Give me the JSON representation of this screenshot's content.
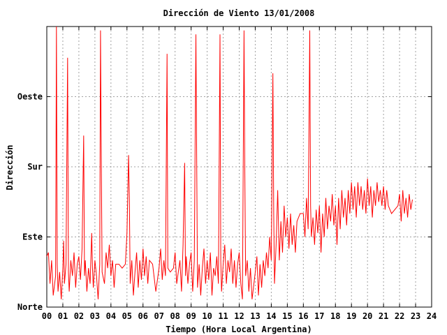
{
  "chart_data": {
    "type": "line",
    "title": "Dirección de Viento 13/01/2008",
    "xlabel": "Tiempo (Hora Local Argentina)",
    "ylabel": "Dirección",
    "x_ticks": [
      "00",
      "01",
      "02",
      "03",
      "04",
      "05",
      "06",
      "07",
      "08",
      "09",
      "10",
      "11",
      "12",
      "13",
      "14",
      "15",
      "16",
      "17",
      "18",
      "19",
      "20",
      "21",
      "22",
      "23",
      "24"
    ],
    "xlim": [
      0,
      24
    ],
    "y_ticks": [
      {
        "label": "Norte",
        "value": 0
      },
      {
        "label": "Este",
        "value": 90
      },
      {
        "label": "Sur",
        "value": 180
      },
      {
        "label": "Oeste",
        "value": 270
      }
    ],
    "ylim": [
      0,
      360
    ],
    "grid": true,
    "line_color": "#ff0000",
    "series": [
      {
        "points": [
          [
            0.0,
            65
          ],
          [
            0.1,
            70
          ],
          [
            0.2,
            30
          ],
          [
            0.3,
            60
          ],
          [
            0.4,
            15
          ],
          [
            0.55,
            40
          ],
          [
            0.6,
            360
          ],
          [
            0.65,
            55
          ],
          [
            0.7,
            20
          ],
          [
            0.8,
            45
          ],
          [
            0.9,
            10
          ],
          [
            1.0,
            50
          ],
          [
            1.05,
            85
          ],
          [
            1.1,
            30
          ],
          [
            1.2,
            55
          ],
          [
            1.3,
            320
          ],
          [
            1.32,
            190
          ],
          [
            1.35,
            45
          ],
          [
            1.4,
            20
          ],
          [
            1.5,
            60
          ],
          [
            1.6,
            40
          ],
          [
            1.7,
            70
          ],
          [
            1.8,
            25
          ],
          [
            1.9,
            55
          ],
          [
            2.0,
            65
          ],
          [
            2.1,
            35
          ],
          [
            2.2,
            75
          ],
          [
            2.3,
            220
          ],
          [
            2.35,
            40
          ],
          [
            2.4,
            60
          ],
          [
            2.5,
            20
          ],
          [
            2.6,
            50
          ],
          [
            2.7,
            30
          ],
          [
            2.8,
            95
          ],
          [
            2.85,
            50
          ],
          [
            2.9,
            25
          ],
          [
            3.0,
            60
          ],
          [
            3.1,
            40
          ],
          [
            3.2,
            10
          ],
          [
            3.3,
            55
          ],
          [
            3.35,
            355
          ],
          [
            3.4,
            180
          ],
          [
            3.45,
            45
          ],
          [
            3.6,
            30
          ],
          [
            3.7,
            70
          ],
          [
            3.8,
            50
          ],
          [
            3.9,
            80
          ],
          [
            4.0,
            40
          ],
          [
            4.1,
            60
          ],
          [
            4.2,
            25
          ],
          [
            4.3,
            55
          ],
          [
            4.5,
            55
          ],
          [
            4.7,
            50
          ],
          [
            4.9,
            55
          ],
          [
            5.0,
            95
          ],
          [
            5.1,
            195
          ],
          [
            5.15,
            140
          ],
          [
            5.2,
            30
          ],
          [
            5.3,
            60
          ],
          [
            5.4,
            15
          ],
          [
            5.5,
            45
          ],
          [
            5.6,
            70
          ],
          [
            5.7,
            25
          ],
          [
            5.8,
            60
          ],
          [
            5.9,
            35
          ],
          [
            6.0,
            75
          ],
          [
            6.1,
            40
          ],
          [
            6.2,
            65
          ],
          [
            6.3,
            30
          ],
          [
            6.4,
            60
          ],
          [
            6.6,
            55
          ],
          [
            6.8,
            20
          ],
          [
            7.0,
            50
          ],
          [
            7.1,
            75
          ],
          [
            7.2,
            35
          ],
          [
            7.3,
            60
          ],
          [
            7.4,
            40
          ],
          [
            7.5,
            325
          ],
          [
            7.55,
            50
          ],
          [
            7.7,
            45
          ],
          [
            7.9,
            50
          ],
          [
            8.0,
            70
          ],
          [
            8.1,
            30
          ],
          [
            8.3,
            60
          ],
          [
            8.4,
            20
          ],
          [
            8.5,
            80
          ],
          [
            8.6,
            185
          ],
          [
            8.65,
            40
          ],
          [
            8.7,
            65
          ],
          [
            8.8,
            30
          ],
          [
            8.9,
            55
          ],
          [
            9.0,
            70
          ],
          [
            9.1,
            20
          ],
          [
            9.2,
            60
          ],
          [
            9.3,
            350
          ],
          [
            9.35,
            180
          ],
          [
            9.4,
            25
          ],
          [
            9.5,
            55
          ],
          [
            9.6,
            15
          ],
          [
            9.7,
            50
          ],
          [
            9.8,
            75
          ],
          [
            9.9,
            30
          ],
          [
            10.0,
            60
          ],
          [
            10.1,
            35
          ],
          [
            10.2,
            70
          ],
          [
            10.3,
            15
          ],
          [
            10.4,
            50
          ],
          [
            10.5,
            40
          ],
          [
            10.6,
            65
          ],
          [
            10.7,
            30
          ],
          [
            10.8,
            350
          ],
          [
            10.85,
            60
          ],
          [
            10.9,
            20
          ],
          [
            11.0,
            55
          ],
          [
            11.1,
            80
          ],
          [
            11.2,
            30
          ],
          [
            11.3,
            60
          ],
          [
            11.4,
            45
          ],
          [
            11.5,
            75
          ],
          [
            11.6,
            30
          ],
          [
            11.7,
            60
          ],
          [
            11.8,
            25
          ],
          [
            11.9,
            55
          ],
          [
            12.0,
            70
          ],
          [
            12.1,
            30
          ],
          [
            12.2,
            10
          ],
          [
            12.3,
            355
          ],
          [
            12.35,
            175
          ],
          [
            12.4,
            40
          ],
          [
            12.5,
            60
          ],
          [
            12.6,
            20
          ],
          [
            12.7,
            50
          ],
          [
            12.8,
            10
          ],
          [
            13.0,
            45
          ],
          [
            13.1,
            65
          ],
          [
            13.2,
            15
          ],
          [
            13.3,
            55
          ],
          [
            13.4,
            25
          ],
          [
            13.5,
            60
          ],
          [
            13.6,
            40
          ],
          [
            13.7,
            70
          ],
          [
            13.8,
            50
          ],
          [
            13.9,
            90
          ],
          [
            14.0,
            60
          ],
          [
            14.1,
            300
          ],
          [
            14.15,
            120
          ],
          [
            14.2,
            30
          ],
          [
            14.3,
            80
          ],
          [
            14.4,
            150
          ],
          [
            14.5,
            60
          ],
          [
            14.6,
            110
          ],
          [
            14.7,
            70
          ],
          [
            14.8,
            130
          ],
          [
            14.9,
            90
          ],
          [
            15.0,
            115
          ],
          [
            15.1,
            75
          ],
          [
            15.2,
            120
          ],
          [
            15.3,
            80
          ],
          [
            15.4,
            105
          ],
          [
            15.5,
            70
          ],
          [
            15.6,
            110
          ],
          [
            15.8,
            120
          ],
          [
            16.0,
            120
          ],
          [
            16.1,
            90
          ],
          [
            16.2,
            140
          ],
          [
            16.3,
            100
          ],
          [
            16.4,
            355
          ],
          [
            16.45,
            130
          ],
          [
            16.5,
            90
          ],
          [
            16.6,
            115
          ],
          [
            16.7,
            80
          ],
          [
            16.8,
            125
          ],
          [
            16.9,
            95
          ],
          [
            17.0,
            130
          ],
          [
            17.1,
            70
          ],
          [
            17.2,
            120
          ],
          [
            17.3,
            90
          ],
          [
            17.4,
            140
          ],
          [
            17.5,
            100
          ],
          [
            17.6,
            130
          ],
          [
            17.7,
            110
          ],
          [
            17.8,
            145
          ],
          [
            17.9,
            105
          ],
          [
            18.0,
            130
          ],
          [
            18.1,
            80
          ],
          [
            18.2,
            140
          ],
          [
            18.3,
            100
          ],
          [
            18.4,
            150
          ],
          [
            18.5,
            115
          ],
          [
            18.6,
            140
          ],
          [
            18.7,
            105
          ],
          [
            18.8,
            150
          ],
          [
            18.9,
            120
          ],
          [
            19.0,
            160
          ],
          [
            19.1,
            125
          ],
          [
            19.2,
            155
          ],
          [
            19.3,
            115
          ],
          [
            19.4,
            160
          ],
          [
            19.5,
            130
          ],
          [
            19.6,
            155
          ],
          [
            19.7,
            125
          ],
          [
            19.8,
            150
          ],
          [
            19.9,
            120
          ],
          [
            20.0,
            165
          ],
          [
            20.1,
            130
          ],
          [
            20.2,
            155
          ],
          [
            20.3,
            115
          ],
          [
            20.4,
            150
          ],
          [
            20.5,
            130
          ],
          [
            20.6,
            160
          ],
          [
            20.7,
            135
          ],
          [
            20.8,
            150
          ],
          [
            20.9,
            130
          ],
          [
            21.0,
            155
          ],
          [
            21.1,
            125
          ],
          [
            21.2,
            150
          ],
          [
            21.3,
            130
          ],
          [
            21.5,
            120
          ],
          [
            21.7,
            125
          ],
          [
            21.9,
            130
          ],
          [
            22.0,
            145
          ],
          [
            22.1,
            110
          ],
          [
            22.2,
            150
          ],
          [
            22.3,
            120
          ],
          [
            22.4,
            140
          ],
          [
            22.5,
            115
          ],
          [
            22.6,
            145
          ],
          [
            22.7,
            125
          ],
          [
            22.8,
            138
          ]
        ]
      }
    ]
  }
}
